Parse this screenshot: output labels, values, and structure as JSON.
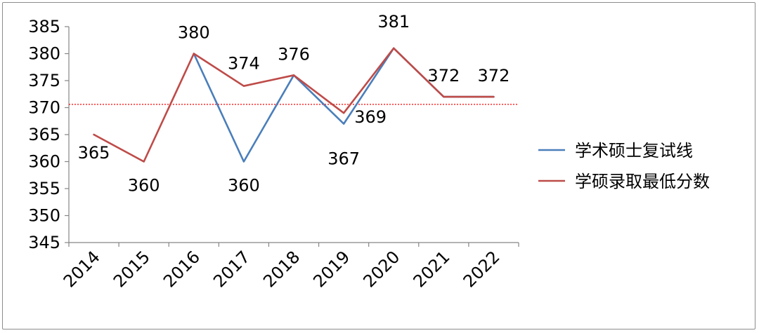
{
  "chart_data": {
    "type": "line",
    "categories": [
      "2014",
      "2015",
      "2016",
      "2017",
      "2018",
      "2019",
      "2020",
      "2021",
      "2022"
    ],
    "series": [
      {
        "name": "学术硕士复试线",
        "color": "#4a7ebb",
        "values": [
          null,
          null,
          380,
          360,
          376,
          367,
          381,
          372,
          372
        ]
      },
      {
        "name": "学硕录取最低分数",
        "color": "#be4b48",
        "values": [
          365,
          360,
          380,
          374,
          376,
          369,
          381,
          372,
          372
        ]
      }
    ],
    "data_labels": [
      {
        "category": "2014",
        "value": 365,
        "text": "365"
      },
      {
        "category": "2015",
        "value": 360,
        "text": "360"
      },
      {
        "category": "2016",
        "value": 380,
        "text": "380"
      },
      {
        "category": "2017",
        "value": 374,
        "text": "374"
      },
      {
        "category": "2017",
        "value": 360,
        "text": "360"
      },
      {
        "category": "2018",
        "value": 376,
        "text": "376"
      },
      {
        "category": "2019",
        "value": 369,
        "text": "369"
      },
      {
        "category": "2019",
        "value": 367,
        "text": "367"
      },
      {
        "category": "2020",
        "value": 381,
        "text": "381"
      },
      {
        "category": "2021",
        "value": 372,
        "text": "372"
      },
      {
        "category": "2022",
        "value": 372,
        "text": "372"
      }
    ],
    "reference_line": {
      "value": 370.6,
      "color": "#ff0000",
      "style": "dotted"
    },
    "yticks": [
      "345",
      "350",
      "355",
      "360",
      "365",
      "370",
      "375",
      "380",
      "385"
    ],
    "ylim": [
      345,
      385
    ],
    "title": "",
    "xlabel": "",
    "ylabel": "",
    "grid": false,
    "legend_position": "right"
  }
}
